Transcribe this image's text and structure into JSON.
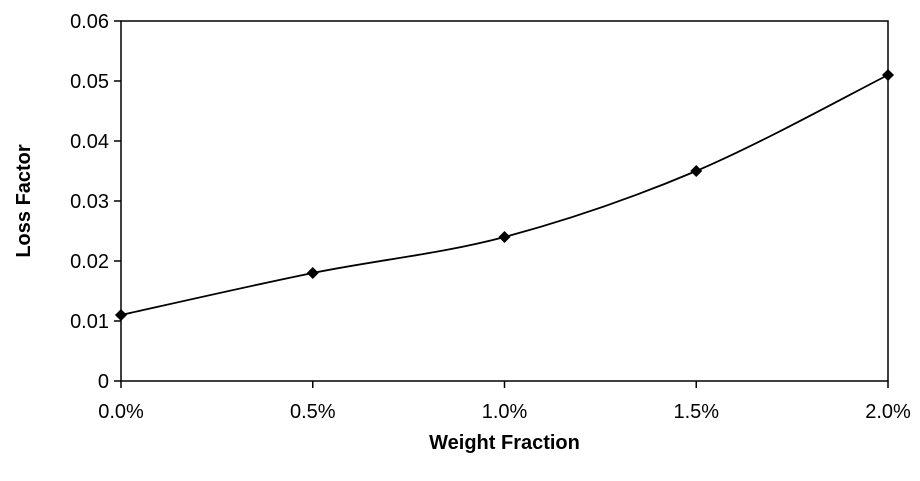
{
  "chart_data": {
    "type": "line",
    "title": "",
    "xlabel": "Weight Fraction",
    "ylabel": "Loss Factor",
    "x": [
      0.0,
      0.5,
      1.0,
      1.5,
      2.0
    ],
    "x_tick_labels": [
      "0.0%",
      "0.5%",
      "1.0%",
      "1.5%",
      "2.0%"
    ],
    "y_tick_labels": [
      "0",
      "0.01",
      "0.02",
      "0.03",
      "0.04",
      "0.05",
      "0.06"
    ],
    "xlim": [
      0.0,
      2.0
    ],
    "ylim": [
      0,
      0.06
    ],
    "series": [
      {
        "values": [
          0.011,
          0.018,
          0.024,
          0.035,
          0.051
        ],
        "marker": "diamond",
        "color": "#000000",
        "smoothed": true
      }
    ],
    "grid": false,
    "legend": "none"
  }
}
